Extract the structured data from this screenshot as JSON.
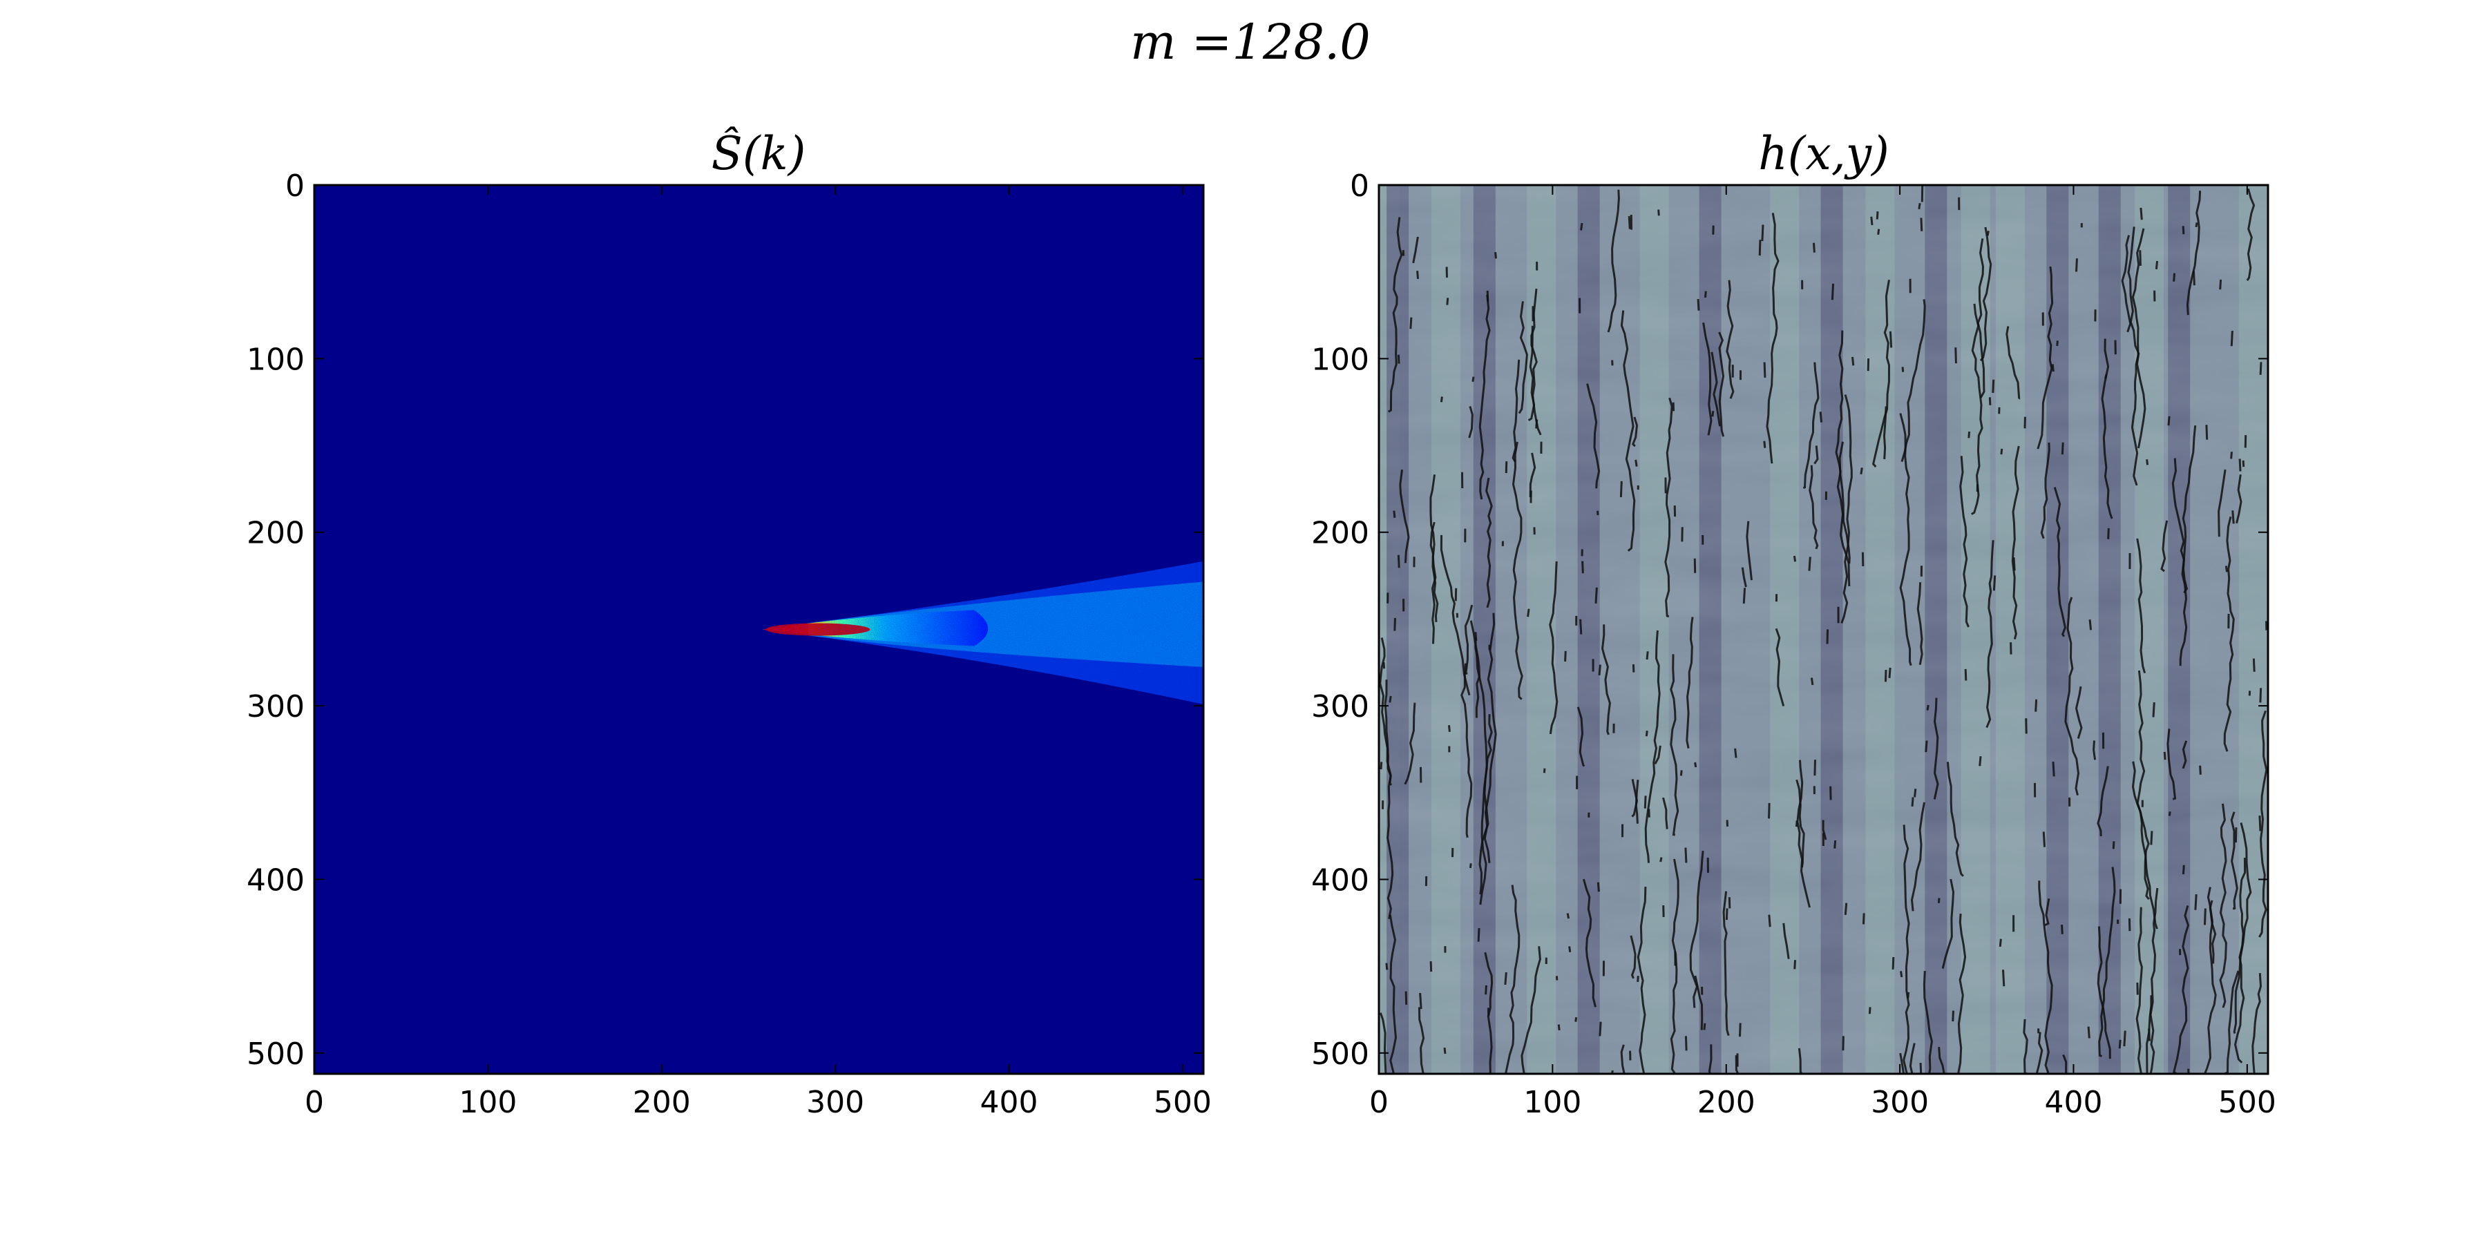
{
  "figure": {
    "suptitle": "m =128.0"
  },
  "colors": {
    "colormap_left": "jet",
    "jet_background": "#00008b",
    "surface_light": "#8aa3a8",
    "surface_dark": "#5a5f80",
    "contour": "#111111"
  },
  "chart_data": [
    {
      "type": "heatmap",
      "title": "Ŝ(k)",
      "colormap": "jet",
      "xlim": [
        0,
        512
      ],
      "ylim": [
        512,
        0
      ],
      "xticks": [
        0,
        100,
        200,
        300,
        400,
        500
      ],
      "yticks": [
        0,
        100,
        200,
        300,
        400,
        500
      ],
      "grid": false,
      "feature": {
        "description_value": "wedge-shaped high-intensity region",
        "apex": [
          258,
          256
        ],
        "right_edge_x": 512,
        "right_edge_y_range": [
          216,
          300
        ],
        "peak_region_x": [
          260,
          320
        ]
      }
    },
    {
      "type": "heatmap",
      "title": "h(x,y)",
      "colormap": "bone-like blue-grey with contour overlay",
      "xlim": [
        0,
        512
      ],
      "ylim": [
        512,
        0
      ],
      "xticks": [
        0,
        100,
        200,
        300,
        400,
        500
      ],
      "yticks": [
        0,
        100,
        200,
        300,
        400,
        500
      ],
      "grid": false,
      "dark_bands_x": [
        10,
        60,
        120,
        190,
        260,
        320,
        390,
        420,
        460
      ],
      "light_bands_x": [
        0,
        35,
        90,
        155,
        230,
        285,
        340,
        360,
        440,
        500
      ]
    }
  ]
}
